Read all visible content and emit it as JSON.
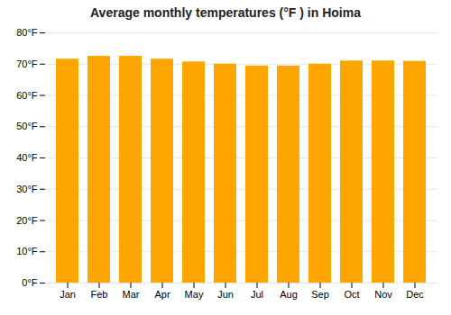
{
  "chart_data": {
    "type": "bar",
    "title": "Average monthly temperatures (°F ) in Hoima",
    "categories": [
      "Jan",
      "Feb",
      "Mar",
      "Apr",
      "May",
      "Jun",
      "Jul",
      "Aug",
      "Sep",
      "Oct",
      "Nov",
      "Dec"
    ],
    "values": [
      71.6,
      72.5,
      72.5,
      71.6,
      70.7,
      70.0,
      69.4,
      69.4,
      70.0,
      71.0,
      71.0,
      70.9
    ],
    "color": "#FFA500",
    "ylim": [
      0,
      80
    ],
    "yticks": [
      {
        "value": 0,
        "label": "0°F"
      },
      {
        "value": 10,
        "label": "10°F"
      },
      {
        "value": 20,
        "label": "20°F"
      },
      {
        "value": 30,
        "label": "30°F"
      },
      {
        "value": 40,
        "label": "40°F"
      },
      {
        "value": 50,
        "label": "50°F"
      },
      {
        "value": 60,
        "label": "60°F"
      },
      {
        "value": 70,
        "label": "70°F"
      },
      {
        "value": 80,
        "label": "80°F"
      }
    ],
    "grid": true
  }
}
